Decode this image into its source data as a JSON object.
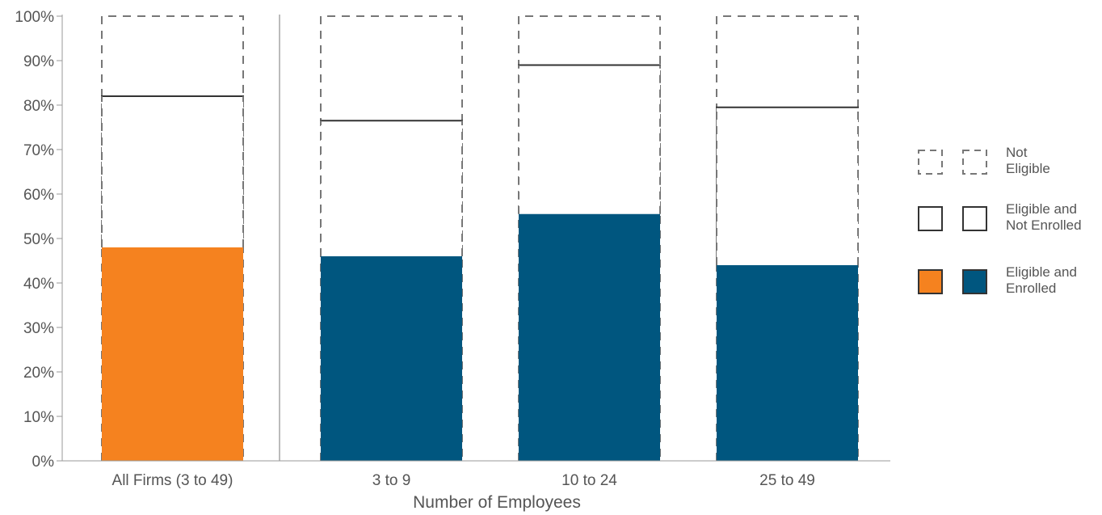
{
  "chart_data": {
    "type": "bar",
    "stacked": true,
    "xlabel": "Number of Employees",
    "ylabel": "",
    "ylim": [
      0,
      100
    ],
    "yticks": [
      "0%",
      "10%",
      "20%",
      "30%",
      "40%",
      "50%",
      "60%",
      "70%",
      "80%",
      "90%",
      "100%"
    ],
    "categories": [
      "All Firms (3 to 49)",
      "3 to 9",
      "10 to 24",
      "25 to 49"
    ],
    "series": [
      {
        "name": "Eligible and Enrolled",
        "values": [
          48,
          46,
          55.5,
          44
        ]
      },
      {
        "name": "Eligible and Not Enrolled",
        "values": [
          34,
          30.5,
          33.5,
          35.5
        ]
      },
      {
        "name": "Not Eligible",
        "values": [
          18,
          23.5,
          11,
          20.5
        ]
      }
    ],
    "legend": {
      "placement": "right",
      "items": [
        {
          "key": "not_eligible",
          "line1": "Not",
          "line2": "Eligible"
        },
        {
          "key": "eligible_not_enrolled",
          "line1": "Eligible and",
          "line2": "Not Enrolled"
        },
        {
          "key": "eligible_enrolled",
          "line1": "Eligible and",
          "line2": "Enrolled"
        }
      ]
    },
    "colors": {
      "all_firms_enrolled": "#f5821f",
      "size_enrolled": "#00567f",
      "outline": "#333333",
      "dashed": "#777777",
      "axis": "#999999",
      "text": "#555555"
    }
  }
}
